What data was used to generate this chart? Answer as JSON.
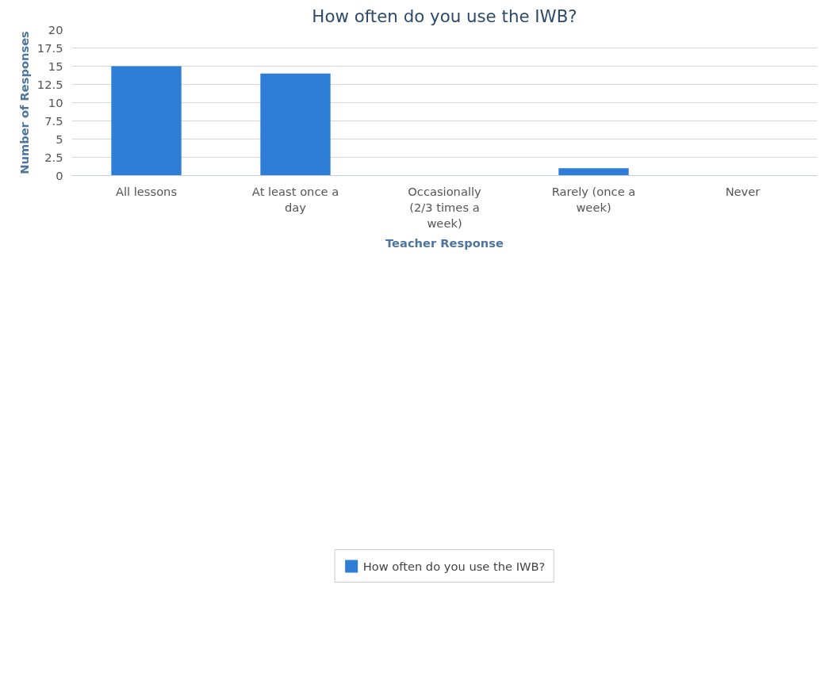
{
  "chart_data": {
    "type": "bar",
    "title": "How often do you use the IWB?",
    "xlabel": "Teacher Response",
    "ylabel": "Number of Responses",
    "categories": [
      "All lessons",
      "At least once a day",
      "Occasionally (2/3 times a week)",
      "Rarely (once a week)",
      "Never"
    ],
    "series": [
      {
        "name": "How often do you use the IWB?",
        "color": "#2e7ed8",
        "values": [
          15,
          14,
          0,
          1,
          0
        ]
      }
    ],
    "ylim": [
      0,
      20
    ],
    "yticks": [
      0,
      2.5,
      5,
      7.5,
      10,
      12.5,
      15,
      17.5,
      20
    ],
    "grid": "y",
    "legend": "bottom"
  }
}
